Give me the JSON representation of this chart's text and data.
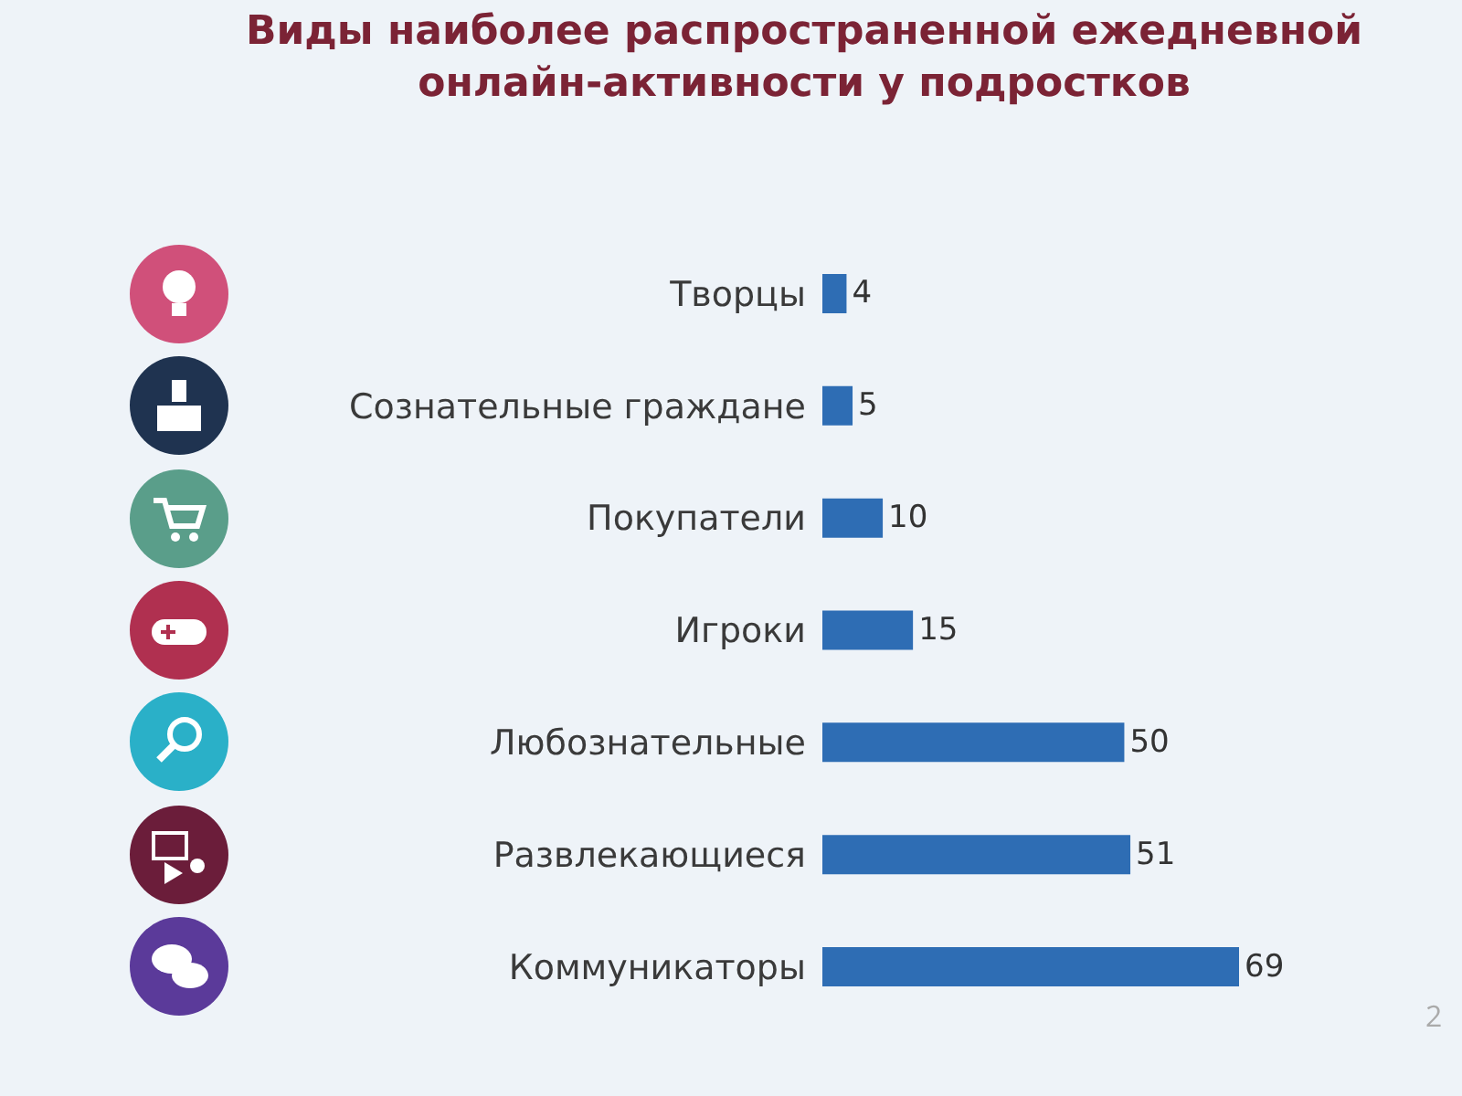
{
  "chart_data": {
    "type": "bar",
    "orientation": "horizontal",
    "title": "Виды наиболее распространенной ежедневной\nонлайн-активности у подростков",
    "categories": [
      "Творцы",
      "Сознательные граждане",
      "Покупатели",
      "Игроки",
      "Любознательные",
      "Развлекающиеся",
      "Коммуникаторы"
    ],
    "values": [
      4,
      5,
      10,
      15,
      50,
      51,
      69
    ],
    "color": "#2e6db4",
    "data_labels": true,
    "annotations": [
      "2"
    ]
  }
}
